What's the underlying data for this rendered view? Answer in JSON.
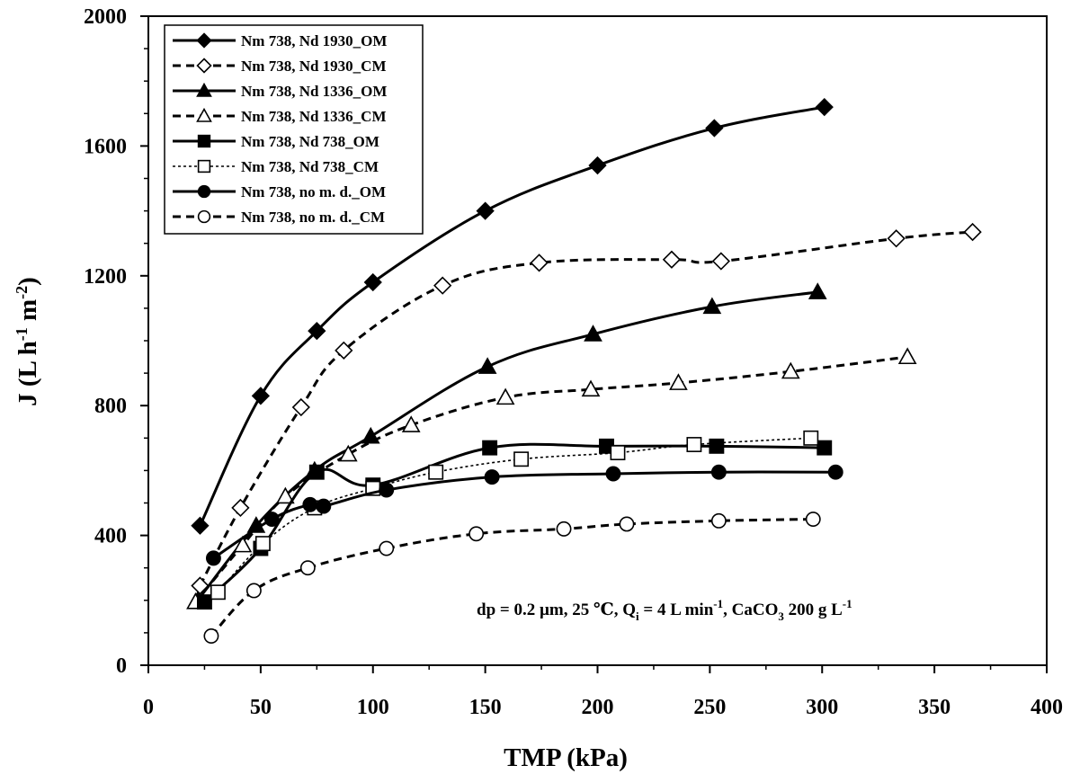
{
  "chart_data": {
    "type": "line",
    "title": "",
    "xlabel": "TMP (kPa)",
    "ylabel_main": "J (L h",
    "ylabel_sup1": "-1",
    "ylabel_mid": " m",
    "ylabel_sup2": "-2",
    "ylabel_end": ")",
    "xlim": [
      0,
      400
    ],
    "ylim": [
      0,
      2000
    ],
    "xticks": [
      "0",
      "50",
      "100",
      "150",
      "200",
      "250",
      "300",
      "350",
      "400"
    ],
    "yticks": [
      "0",
      "400",
      "800",
      "1200",
      "1600",
      "2000"
    ],
    "xtick_values": [
      0,
      50,
      100,
      150,
      200,
      250,
      300,
      350,
      400
    ],
    "ytick_values": [
      0,
      400,
      800,
      1200,
      1600,
      2000
    ],
    "grid": false,
    "legend_position": "top-left",
    "annotation": {
      "a": "dp = 0.2 µm, 25 ℃,  Q",
      "b": "i",
      "c": " = 4 L min",
      "d": "-1",
      "e": ", CaCO",
      "f": "3",
      "g": " 200 g L",
      "h": "-1"
    },
    "series": [
      {
        "name": "Nm 738, Nd 1930_OM",
        "marker": "diamond",
        "fill": "filled",
        "line": "solid",
        "x": [
          23,
          50,
          75,
          100,
          150,
          200,
          252,
          301
        ],
        "y": [
          430,
          830,
          1030,
          1180,
          1400,
          1540,
          1655,
          1720
        ]
      },
      {
        "name": "Nm 738, Nd 1930_CM",
        "marker": "diamond",
        "fill": "open",
        "line": "dashed",
        "x": [
          23,
          41,
          68,
          87,
          131,
          174,
          233,
          255,
          333,
          367
        ],
        "y": [
          245,
          485,
          795,
          970,
          1170,
          1240,
          1250,
          1245,
          1315,
          1335
        ]
      },
      {
        "name": "Nm 738, Nd 1336_OM",
        "marker": "triangle",
        "fill": "filled",
        "line": "solid",
        "x": [
          22,
          48,
          74,
          99,
          151,
          198,
          251,
          298
        ],
        "y": [
          200,
          430,
          600,
          705,
          920,
          1020,
          1105,
          1150
        ]
      },
      {
        "name": "Nm 738, Nd 1336_CM",
        "marker": "triangle",
        "fill": "open",
        "line": "dashed",
        "x": [
          21,
          42,
          61,
          89,
          117,
          159,
          197,
          236,
          286,
          338
        ],
        "y": [
          195,
          370,
          520,
          650,
          740,
          825,
          850,
          870,
          905,
          950
        ]
      },
      {
        "name": "Nm 738, Nd 738_OM",
        "marker": "square",
        "fill": "filled",
        "line": "solid",
        "x": [
          25,
          50,
          75,
          100,
          152,
          204,
          253,
          301
        ],
        "y": [
          195,
          360,
          595,
          555,
          670,
          675,
          675,
          670
        ]
      },
      {
        "name": "Nm 738, Nd 738_CM",
        "marker": "square",
        "fill": "open",
        "line": "dotted",
        "x": [
          31,
          51,
          74,
          100,
          128,
          166,
          209,
          243,
          295
        ],
        "y": [
          225,
          375,
          485,
          545,
          595,
          635,
          655,
          680,
          700
        ]
      },
      {
        "name": "Nm 738, no m. d._OM",
        "marker": "circle",
        "fill": "filled",
        "line": "solid",
        "x": [
          29,
          55,
          72,
          78,
          106,
          153,
          207,
          254,
          306
        ],
        "y": [
          330,
          450,
          495,
          490,
          540,
          580,
          590,
          595,
          595
        ]
      },
      {
        "name": "Nm 738, no m. d._CM",
        "marker": "circle",
        "fill": "open",
        "line": "dashed",
        "x": [
          28,
          47,
          71,
          106,
          146,
          185,
          213,
          254,
          296
        ],
        "y": [
          90,
          230,
          300,
          360,
          405,
          420,
          435,
          445,
          450
        ]
      }
    ]
  }
}
